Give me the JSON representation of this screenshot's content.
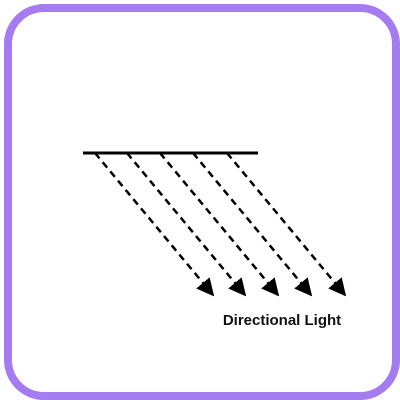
{
  "diagram": {
    "caption": "Directional Light",
    "frame_color": "#a57cf0",
    "line_color": "#000000",
    "ray_count": 5,
    "icon": "directional-light-icon"
  }
}
